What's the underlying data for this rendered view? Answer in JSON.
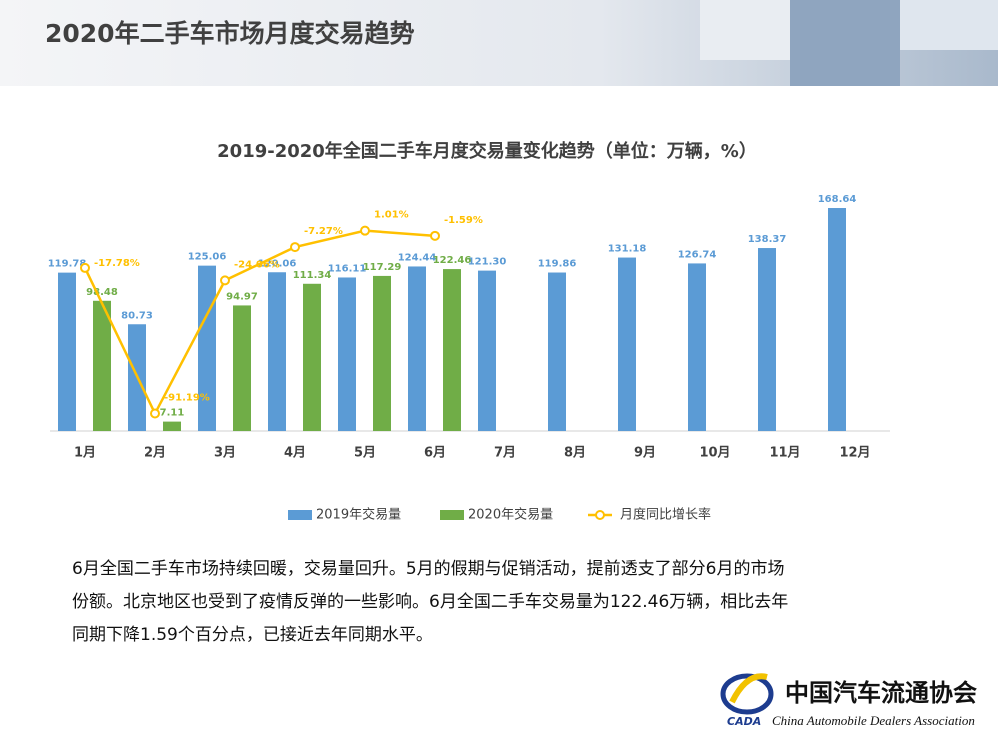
{
  "header": {
    "title": "2020年二手车市场月度交易趋势"
  },
  "chart_data": {
    "type": "bar_line",
    "title": "2019-2020年全国二手车月度交易量变化趋势（单位：万辆，%）",
    "categories": [
      "1月",
      "2月",
      "3月",
      "4月",
      "5月",
      "6月",
      "7月",
      "8月",
      "9月",
      "10月",
      "11月",
      "12月"
    ],
    "ylim": [
      0,
      180
    ],
    "y2lim": [
      -100,
      20
    ],
    "legend": "bottom",
    "series": [
      {
        "name": "2019年交易量",
        "color": "#5b9bd5",
        "values": [
          119.78,
          80.73,
          125.06,
          120.06,
          116.11,
          124.44,
          121.3,
          119.86,
          131.18,
          126.74,
          138.37,
          168.64
        ],
        "value_labels": [
          "119.78",
          "80.73",
          "125.06",
          "120.06",
          "116.11",
          "124.44",
          "121.30",
          "119.86",
          "131.18",
          "126.74",
          "138.37",
          "168.64"
        ]
      },
      {
        "name": "2020年交易量",
        "color": "#70ad47",
        "values": [
          98.48,
          7.11,
          94.97,
          111.34,
          117.29,
          122.46,
          null,
          null,
          null,
          null,
          null,
          null
        ],
        "value_labels": [
          "98.48",
          "7.11",
          "94.97",
          "111.34",
          "117.29",
          "122.46",
          null,
          null,
          null,
          null,
          null,
          null
        ]
      },
      {
        "name": "月度同比增长率",
        "color": "#ffc000",
        "axis": "y2",
        "type": "line",
        "values": [
          -17.78,
          -91.19,
          -24.06,
          -7.27,
          1.01,
          -1.59,
          null,
          null,
          null,
          null,
          null,
          null
        ],
        "value_labels": [
          "-17.78%",
          "-91.19%",
          "-24.06%",
          "-7.27%",
          "1.01%",
          "-1.59%",
          null,
          null,
          null,
          null,
          null,
          null
        ]
      }
    ]
  },
  "text_lines": [
    "6月全国二手车市场持续回暖，交易量回升。5月的假期与促销活动，提前透支了部分6月的市场",
    "份额。北京地区也受到了疫情反弹的一些影响。6月全国二手车交易量为122.46万辆，相比去年",
    "同期下降1.59个百分点，已接近去年同期水平。"
  ],
  "logo": {
    "abbr": "CADA",
    "name": "中国汽车流通协会",
    "english": "China Automobile Dealers Association"
  }
}
